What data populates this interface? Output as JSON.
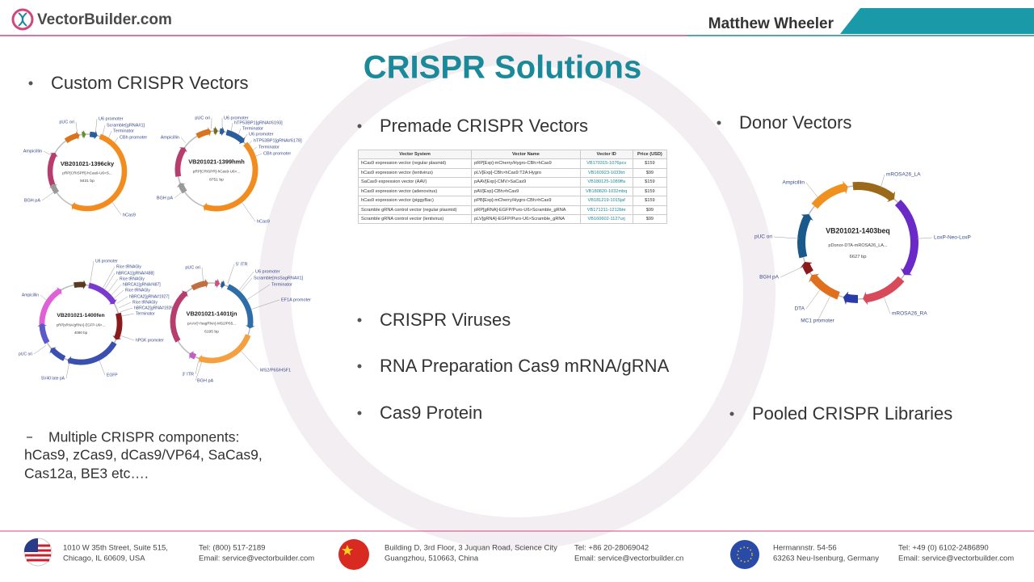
{
  "header": {
    "logo": "VectorBuilder.com",
    "presenter": "Matthew Wheeler"
  },
  "title": "CRISPR Solutions",
  "custom": {
    "heading": "Custom CRISPR Vectors",
    "plasmids": [
      {
        "name": "VB201021-1396cky",
        "description": "pRP[CRISPR]-hCas9-U6>S...",
        "size": "8431 bp",
        "features": [
          "pUC ori",
          "U6 promoter",
          "Scramble[gRNA#1]",
          "Terminator",
          "CBh promoter",
          "Ampicillin",
          "BGH pA",
          "hCas9"
        ]
      },
      {
        "name": "VB201021-1399hmh",
        "description": "pRP[CRISPR]-hCas9-U6>...",
        "size": "8751 bp",
        "features": [
          "pUC ori",
          "U6 promoter",
          "hTP53BP1[gRNA#6193]",
          "Terminator",
          "U6 promoter",
          "hTP53BP1[gRNA#6178]",
          "Terminator",
          "CBh promoter",
          "Ampicillin",
          "BGH pA",
          "hCas9"
        ]
      },
      {
        "name": "VB201021-1400fen",
        "description": "pRP[sRNA/gRNA]-EGFP-U6>...",
        "size": "4090 bp",
        "features": [
          "U6 promoter",
          "Rice tRNAGly",
          "hBRCA1[gRNA#488]",
          "Rice tRNAGly",
          "hBRCA1[gRNA#487]",
          "Rice tRNAGly",
          "hBRCA2[gRNA#1927]",
          "Rice tRNAGly",
          "hBRCA2[gRNA#1926]",
          "Terminator",
          "Ampicillin",
          "hPGK promoter",
          "pUC ori",
          "SV40 late pA",
          "EGFP"
        ]
      },
      {
        "name": "VB201021-1401tjn",
        "description": "pAAV[+/sagRNA]-MS2/P65...",
        "size": "6195 bp",
        "features": [
          "pUC ori",
          "5' ITR",
          "U6 promoter",
          "Scramble[msSagRNA#1]",
          "Terminator",
          "EF1A promoter",
          "MS2/P65/HSF1",
          "3' ITR",
          "BGH pA"
        ]
      }
    ],
    "note": [
      "Multiple CRISPR components:",
      "hCas9, zCas9, dCas9/VP64, SaCas9,",
      "Cas12a, BE3 etc…."
    ]
  },
  "premade": {
    "heading": "Premade CRISPR Vectors",
    "table": {
      "columns": [
        "Vector System",
        "Vector Name",
        "Vector ID",
        "Price (USD)"
      ],
      "rows": [
        [
          "hCas9 expression vector (regular plasmid)",
          "pRP[Exp]-mCherry/Hygro-CBh>hCas9",
          "VB170315-1076pcv",
          "$159"
        ],
        [
          "hCas9 expression vector (lentivirus)",
          "pLV[Exp]-CBh>hCas9:T2A:Hygro",
          "VB160923-1033trt",
          "$99"
        ],
        [
          "SaCas9 expression vector (AAV)",
          "pAAV[Exp]-CMV>SaCas9",
          "VB180125-1089ffa",
          "$159"
        ],
        [
          "hCas9 expression vector (adenovirus)",
          "pAV[Exp]-CBh>hCas9",
          "VB180820-1032mbq",
          "$159"
        ],
        [
          "hCas9 expression vector (piggyBac)",
          "pPB[Exp]-mCherry/Hygro-CBh>hCas9",
          "VB181219-1015jaf",
          "$159"
        ],
        [
          "Scramble gRNA control vector (regular plasmid)",
          "pRP[gRNA]-EGFP/Puro-U6>Scramble_gRNA",
          "VB171211-1212bte",
          "$99"
        ],
        [
          "Scramble gRNA control vector (lentivirus)",
          "pLV[gRNA]-EGFP/Puro-U6>Scramble_gRNA",
          "VB160602-1127urj",
          "$99"
        ]
      ]
    }
  },
  "bullets": [
    "CRISPR Viruses",
    "RNA Preparation Cas9 mRNA/gRNA",
    "Cas9 Protein"
  ],
  "donor": {
    "heading": "Donor Vectors",
    "plasmid": {
      "name": "VB201021-1403beq",
      "description": "pDonor-DTA-mROSA26_LA...",
      "size": "6627 bp",
      "features": [
        "Ampicillin",
        "mROSA26_LA",
        "LoxP-Neo-LoxP",
        "pUC ori",
        "BGH pA",
        "DTA",
        "MC1 promoter",
        "mROSA26_RA"
      ]
    }
  },
  "pooled": "Pooled CRISPR Libraries",
  "footer": {
    "offices": [
      {
        "address": [
          "1010 W 35th Street, Suite 515,",
          "Chicago, IL 60609, USA"
        ],
        "tel": "Tel: (800) 517-2189",
        "email": "Email: service@vectorbuilder.com"
      },
      {
        "address": [
          "Building D, 3rd Floor, 3 Juquan Road, Science City",
          "Guangzhou, 510663, China"
        ],
        "tel": "Tel: +86 20-28069042",
        "email": "Email: service@vectorbuilder.cn"
      },
      {
        "address": [
          "Hermannstr. 54-56",
          "63263 Neu-Isenburg, Germany"
        ],
        "tel": "Tel: +49 (0) 6102-2486890",
        "email": "Email: service@vectorbuilder.com"
      }
    ]
  }
}
